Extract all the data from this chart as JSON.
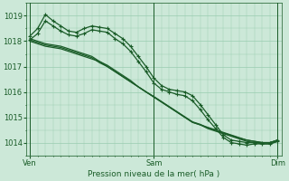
{
  "xlabel": "Pression niveau de la mer( hPa )",
  "bg_color": "#cce8d8",
  "grid_color": "#99ccb0",
  "line_color": "#1a5c28",
  "ylim": [
    1013.7,
    1019.5
  ],
  "yticks": [
    1014,
    1015,
    1016,
    1017,
    1018,
    1019
  ],
  "xtick_labels": [
    "Ven",
    "Sam",
    "Dim"
  ],
  "xtick_positions": [
    0,
    16,
    32
  ],
  "series": [
    {
      "x": [
        0,
        1,
        2,
        3,
        4,
        5,
        6,
        7,
        8,
        9,
        10,
        11,
        12,
        13,
        14,
        15,
        16,
        17,
        18,
        19,
        20,
        21,
        22,
        23,
        24,
        25,
        26,
        27,
        28,
        29,
        30,
        31,
        32
      ],
      "y": [
        1018.0,
        1017.9,
        1017.8,
        1017.75,
        1017.7,
        1017.6,
        1017.5,
        1017.4,
        1017.3,
        1017.2,
        1017.0,
        1016.8,
        1016.6,
        1016.4,
        1016.2,
        1016.0,
        1015.8,
        1015.6,
        1015.4,
        1015.2,
        1015.0,
        1014.8,
        1014.7,
        1014.6,
        1014.5,
        1014.4,
        1014.3,
        1014.2,
        1014.1,
        1014.05,
        1014.0,
        1014.0,
        1014.1
      ],
      "marker": null
    },
    {
      "x": [
        0,
        1,
        2,
        3,
        4,
        5,
        6,
        7,
        8,
        9,
        10,
        11,
        12,
        13,
        14,
        15,
        16,
        17,
        18,
        19,
        20,
        21,
        22,
        23,
        24,
        25,
        26,
        27,
        28,
        29,
        30,
        31,
        32
      ],
      "y": [
        1018.05,
        1017.95,
        1017.85,
        1017.8,
        1017.75,
        1017.65,
        1017.55,
        1017.45,
        1017.35,
        1017.15,
        1017.0,
        1016.8,
        1016.6,
        1016.4,
        1016.2,
        1016.0,
        1015.8,
        1015.6,
        1015.4,
        1015.2,
        1015.0,
        1014.8,
        1014.7,
        1014.55,
        1014.45,
        1014.35,
        1014.25,
        1014.15,
        1014.05,
        1014.0,
        1013.95,
        1013.95,
        1014.05
      ],
      "marker": null
    },
    {
      "x": [
        0,
        1,
        2,
        3,
        4,
        5,
        6,
        7,
        8,
        9,
        10,
        11,
        12,
        13,
        14,
        15,
        16,
        17,
        18,
        19,
        20,
        21,
        22,
        23,
        24,
        25,
        26,
        27,
        28,
        29,
        30,
        31,
        32
      ],
      "y": [
        1018.1,
        1018.0,
        1017.9,
        1017.85,
        1017.8,
        1017.7,
        1017.6,
        1017.5,
        1017.4,
        1017.2,
        1017.05,
        1016.85,
        1016.65,
        1016.45,
        1016.2,
        1016.0,
        1015.82,
        1015.62,
        1015.42,
        1015.22,
        1015.02,
        1014.82,
        1014.72,
        1014.58,
        1014.48,
        1014.38,
        1014.28,
        1014.18,
        1014.1,
        1014.05,
        1014.0,
        1014.0,
        1014.1
      ],
      "marker": null
    },
    {
      "x": [
        0,
        1,
        2,
        3,
        4,
        5,
        6,
        7,
        8,
        9,
        10,
        11,
        12,
        13,
        14,
        15,
        16,
        17,
        18,
        19,
        20,
        21,
        22,
        23,
        24,
        25,
        26,
        27,
        28,
        29,
        30,
        31,
        32
      ],
      "y": [
        1018.2,
        1018.5,
        1019.05,
        1018.8,
        1018.6,
        1018.4,
        1018.35,
        1018.5,
        1018.6,
        1018.55,
        1018.5,
        1018.3,
        1018.1,
        1017.8,
        1017.4,
        1017.0,
        1016.55,
        1016.25,
        1016.1,
        1016.05,
        1016.0,
        1015.85,
        1015.5,
        1015.1,
        1014.7,
        1014.3,
        1014.1,
        1014.05,
        1014.0,
        1014.0,
        1014.0,
        1014.0,
        1014.1
      ],
      "marker": "+"
    },
    {
      "x": [
        0,
        1,
        2,
        3,
        4,
        5,
        6,
        7,
        8,
        9,
        10,
        11,
        12,
        13,
        14,
        15,
        16,
        17,
        18,
        19,
        20,
        21,
        22,
        23,
        24,
        25,
        26,
        27,
        28,
        29,
        30,
        31,
        32
      ],
      "y": [
        1018.05,
        1018.3,
        1018.8,
        1018.6,
        1018.4,
        1018.25,
        1018.2,
        1018.3,
        1018.45,
        1018.4,
        1018.35,
        1018.1,
        1017.9,
        1017.6,
        1017.2,
        1016.8,
        1016.35,
        1016.1,
        1016.0,
        1015.9,
        1015.85,
        1015.65,
        1015.3,
        1014.9,
        1014.55,
        1014.2,
        1014.0,
        1013.95,
        1013.9,
        1013.95,
        1013.95,
        1013.95,
        1014.05
      ],
      "marker": "+"
    }
  ],
  "marker_size": 3.5,
  "linewidth": 0.9
}
